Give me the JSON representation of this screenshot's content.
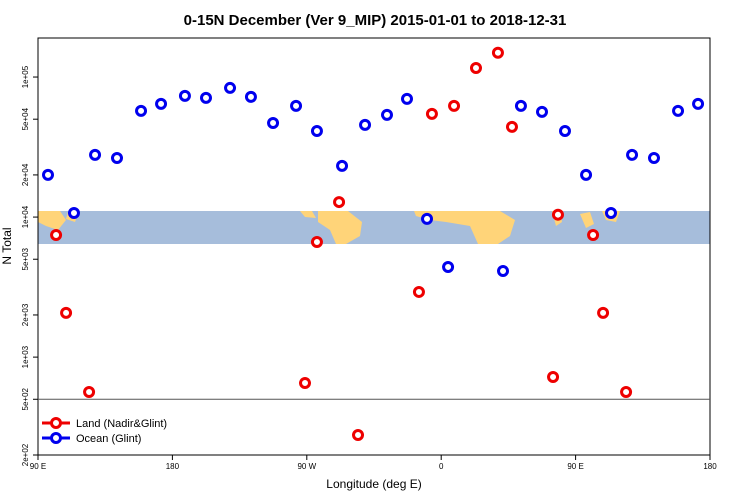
{
  "chart_data": {
    "type": "scatter",
    "title": "0-15N December (Ver 9_MIP)   2015-01-01 to 2018-12-31",
    "x_label": "Longitude (deg E)",
    "y_label": "N Total",
    "log_y": true,
    "xlim": [
      90,
      540
    ],
    "ylim": [
      200,
      190000
    ],
    "xticks": [
      {
        "value": 90,
        "label": "90 E"
      },
      180,
      {
        "value": 270,
        "label": "90 W"
      },
      {
        "value": 360,
        "label": "0"
      },
      {
        "value": 450,
        "label": "90 E"
      },
      {
        "value": 540,
        "label": "180"
      }
    ],
    "yticks": [
      {
        "value": 200,
        "label": "2e+02"
      },
      {
        "value": 500,
        "label": "5e+02"
      },
      {
        "value": 1000,
        "label": "1e+03"
      },
      {
        "value": 2000,
        "label": "2e+03"
      },
      {
        "value": 5000,
        "label": "5e+03"
      },
      {
        "value": 10000,
        "label": "1e+04"
      },
      {
        "value": 20000,
        "label": "2e+04"
      },
      {
        "value": 50000,
        "label": "5e+04"
      },
      {
        "value": 100000,
        "label": "1e+05"
      }
    ],
    "reference_line": 500,
    "legend": "bottom-left",
    "series": [
      {
        "name": "Land (Nadir&Glint)",
        "color": "#ee0000",
        "x": [
          102.1,
          108.8,
          124.2,
          268.8,
          276.8,
          291.6,
          304.3,
          345.1,
          353.8,
          368.6,
          383.3,
          398,
          407.4,
          434.9,
          438.2,
          461.7,
          468.4,
          483.8
        ],
        "values": [
          7450,
          2070,
          564,
          653,
          6640,
          12800,
          278,
          2920,
          54600,
          62200,
          116000,
          149000,
          44100,
          721,
          10400,
          7450,
          2070,
          564
        ]
      },
      {
        "name": "Ocean (Glint)",
        "color": "#0000ee",
        "x": [
          96.7,
          114.1,
          128.2,
          142.9,
          159,
          172.4,
          188.4,
          202.5,
          218.6,
          232.6,
          247.4,
          262.8,
          276.8,
          293.6,
          309,
          323.7,
          337.1,
          350.5,
          364.6,
          401.4,
          413.4,
          427.5,
          442.9,
          457,
          473.7,
          487.8,
          502.5,
          518.6,
          532
        ],
        "values": [
          20000,
          10700,
          27800,
          26400,
          57300,
          64300,
          73300,
          71000,
          83600,
          72200,
          47000,
          62200,
          41200,
          23200,
          45500,
          53700,
          69800,
          9700,
          4400,
          4120,
          62200,
          56400,
          41200,
          20000,
          10700,
          27800,
          26400,
          57300,
          64300
        ]
      }
    ]
  }
}
